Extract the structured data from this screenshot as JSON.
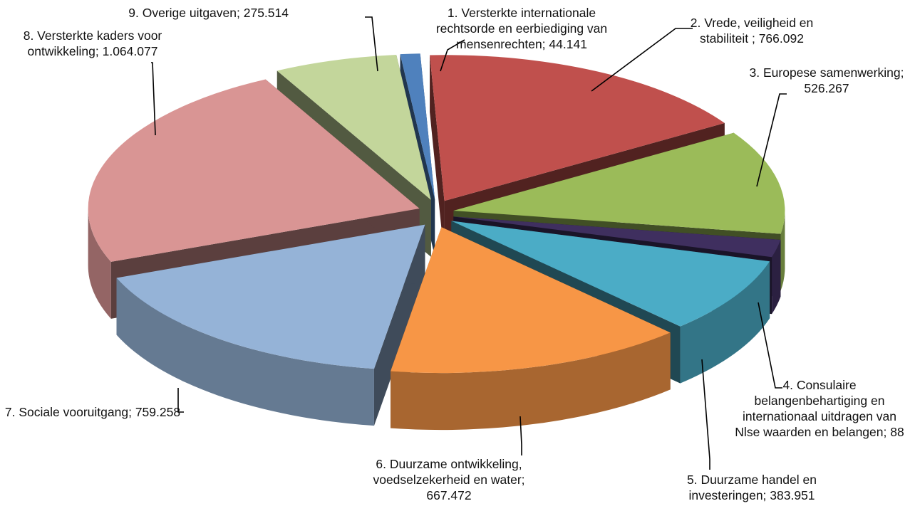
{
  "chart_data": {
    "type": "pie",
    "style": "exploded 3D pie",
    "title": "",
    "legend": "none (data labels with leader lines)",
    "slices": [
      {
        "label": "1. Versterkte internationale rechtsorde en eerbiediging van mensenrechten",
        "value": 44.141,
        "color": "#4f81bd",
        "label_lines": [
          "1. Versterkte internationale",
          "rechtsorde en eerbiediging van",
          "mensenrechten; 44.141"
        ]
      },
      {
        "label": "2. Vrede, veiligheid en stabiliteit",
        "value": 766.092,
        "color": "#c0504d",
        "label_lines": [
          "2. Vrede, veiligheid en",
          "stabiliteit ; 766.092"
        ]
      },
      {
        "label": "3. Europese samenwerking",
        "value": 526.267,
        "color": "#9bbb59",
        "label_lines": [
          "3. Europese samenwerking;",
          "526.267"
        ]
      },
      {
        "label": "4. Consulaire belangenbehartiging en internationaal uitdragen van Nlse waarden en belangen",
        "value": 88,
        "color": "#3f2f5f",
        "label_lines": [
          "4. Consulaire",
          "belangenbehartiging en",
          "internationaal uitdragen van",
          "Nlse waarden en belangen; 88"
        ]
      },
      {
        "label": "5. Duurzame handel en investeringen",
        "value": 383.951,
        "color": "#4bacc6",
        "label_lines": [
          "5. Duurzame handel en",
          "investeringen; 383.951"
        ]
      },
      {
        "label": "6. Duurzame ontwikkeling, voedselzekerheid en water",
        "value": 667.472,
        "color": "#f79646",
        "label_lines": [
          "6. Duurzame ontwikkeling,",
          "voedselzekerheid en water;",
          "667.472"
        ]
      },
      {
        "label": "7. Sociale vooruitgang",
        "value": 759.258,
        "color": "#95b3d7",
        "label_lines": [
          "7. Sociale vooruitgang; 759.258"
        ]
      },
      {
        "label": "8. Versterkte kaders voor ontwikkeling",
        "value": 1064.077,
        "color": "#d99594",
        "label_lines": [
          "8. Versterkte kaders voor",
          "ontwikkeling; 1.064.077"
        ]
      },
      {
        "label": "9. Overige uitgaven",
        "value": 275.514,
        "color": "#c3d69b",
        "label_lines": [
          "9. Overige uitgaven; 275.514"
        ]
      }
    ]
  }
}
